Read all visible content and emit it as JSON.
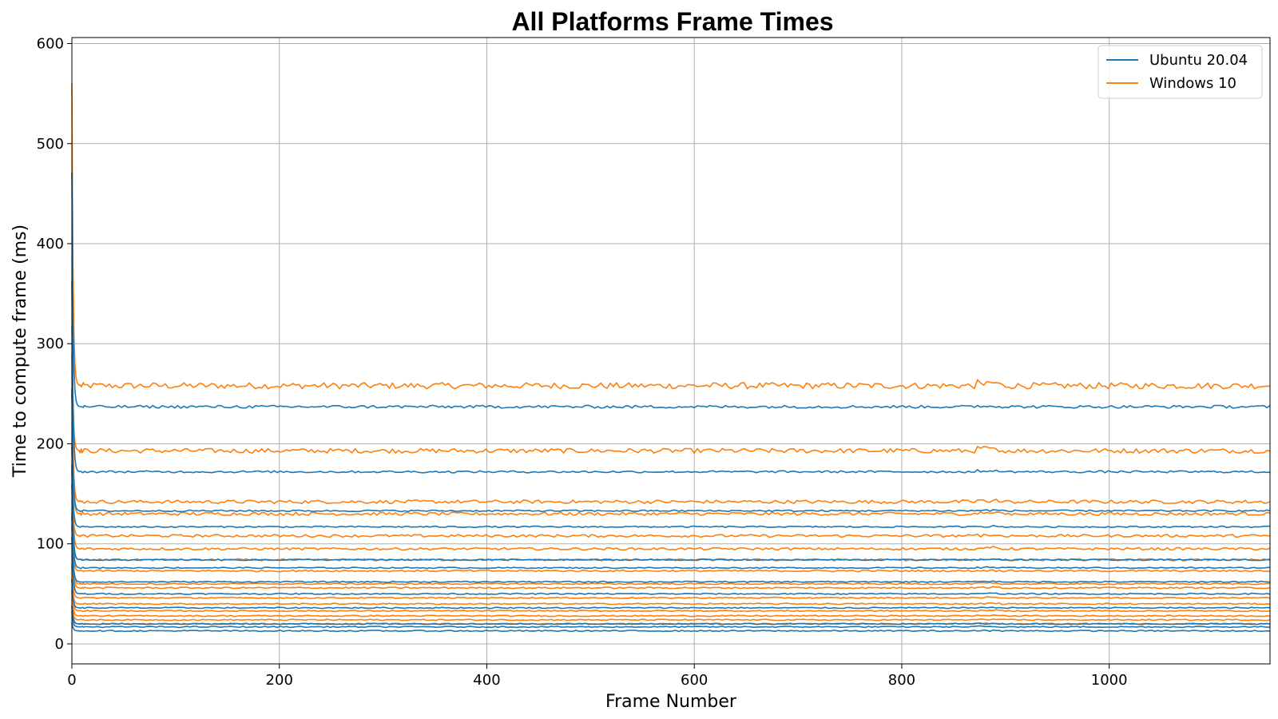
{
  "chart_data": {
    "type": "line",
    "title": "All Platforms Frame Times",
    "xlabel": "Frame Number",
    "ylabel": "Time to compute frame (ms)",
    "xlim": [
      0,
      1155
    ],
    "ylim": [
      -20,
      606
    ],
    "xticks": [
      0,
      200,
      400,
      600,
      800,
      1000
    ],
    "yticks": [
      0,
      100,
      200,
      300,
      400,
      500,
      600
    ],
    "grid": true,
    "legend_position": "top-right",
    "series": [
      {
        "name": "Ubuntu 20.04",
        "color": "#1f77b4"
      },
      {
        "name": "Windows 10",
        "color": "#ff7f0e"
      }
    ],
    "approximate_run_levels_ms": {
      "Ubuntu 20.04": [
        237,
        172,
        133,
        117,
        84,
        76,
        62,
        50,
        36,
        20,
        17,
        13
      ],
      "Windows 10": [
        258,
        193,
        142,
        130,
        108,
        95,
        84,
        73,
        60,
        56,
        46,
        40,
        33,
        28,
        24,
        20
      ]
    },
    "initial_peak_ms": 560
  }
}
